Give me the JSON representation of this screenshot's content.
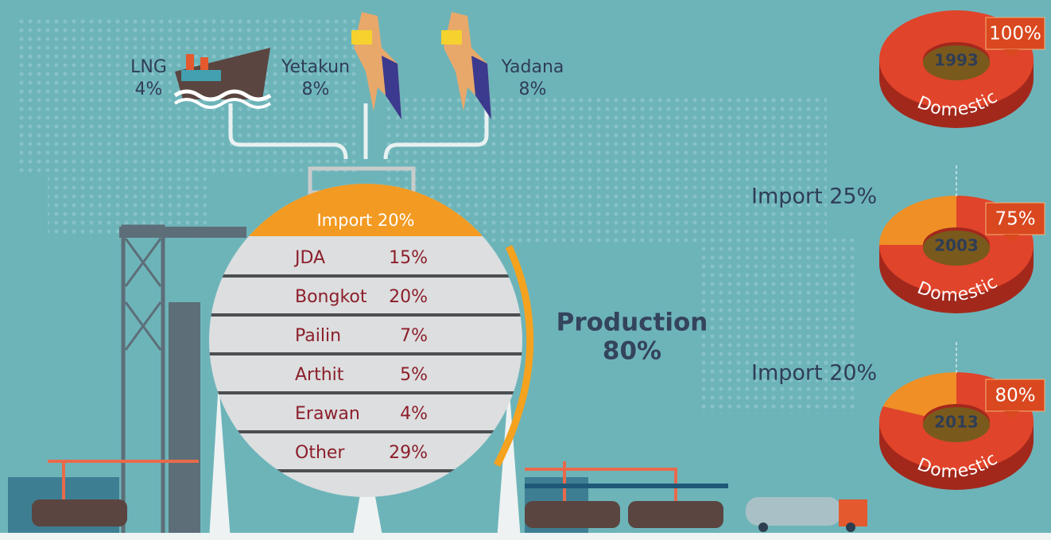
{
  "sources": [
    {
      "name": "LNG",
      "share": "4%"
    },
    {
      "name": "Yetakun",
      "share": "8%"
    },
    {
      "name": "Yadana",
      "share": "8%"
    }
  ],
  "tank": {
    "import": "Import 20%",
    "rows": [
      {
        "name": "JDA",
        "share": "15%"
      },
      {
        "name": "Bongkot",
        "share": "20%"
      },
      {
        "name": "Pailin",
        "share": "7%"
      },
      {
        "name": "Arthit",
        "share": "5%"
      },
      {
        "name": "Erawan",
        "share": "4%"
      },
      {
        "name": "Other",
        "share": "29%"
      }
    ],
    "production": {
      "label": "Production",
      "share": "80%"
    }
  },
  "donuts": [
    {
      "year": "1993",
      "domestic": 100,
      "domestic_label": "100%",
      "segment": "Domestic"
    },
    {
      "year": "2003",
      "domestic": 75,
      "domestic_label": "75%",
      "segment": "Domestic",
      "import_label": "Import 25%"
    },
    {
      "year": "2013",
      "domestic": 80,
      "domestic_label": "80%",
      "segment": "Domestic",
      "import_label": "Import 20%"
    }
  ]
}
